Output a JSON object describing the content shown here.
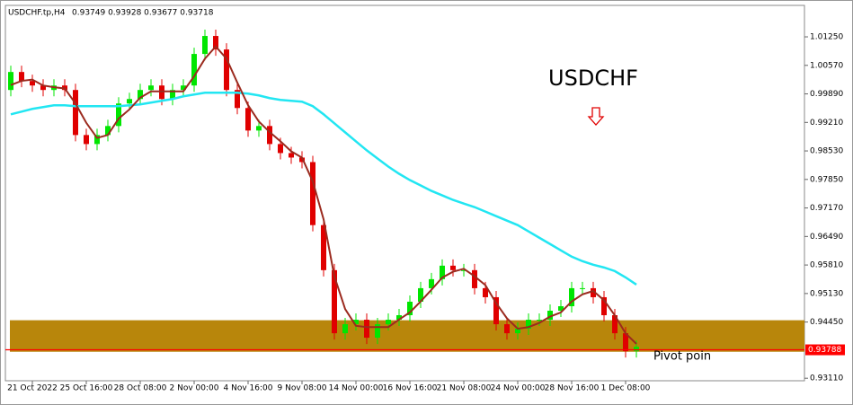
{
  "chart_data": {
    "type": "candlestick",
    "header": "USDCHF.tp,H4",
    "quote": "0.93749 0.93928 0.93677 0.93718",
    "annotation": "USDCHF",
    "pivot_label": "Pivot poin",
    "categories": [
      null,
      null,
      "21 Oct 2022",
      null,
      null,
      null,
      null,
      "25 Oct 16:00",
      null,
      null,
      null,
      null,
      "28 Oct 08:00",
      null,
      null,
      null,
      null,
      "2 Nov 00:00",
      null,
      null,
      null,
      null,
      "4 Nov 16:00",
      null,
      null,
      null,
      null,
      "9 Nov 08:00",
      null,
      null,
      null,
      null,
      "14 Nov 00:00",
      null,
      null,
      null,
      null,
      "16 Nov 16:00",
      null,
      null,
      null,
      null,
      "21 Nov 08:00",
      null,
      null,
      null,
      null,
      "24 Nov 00:00",
      null,
      null,
      null,
      null,
      "28 Nov 16:00",
      null,
      null,
      null,
      null,
      "1 Dec 08:00",
      null
    ],
    "open": [
      0.99983,
      1.00412,
      1.00198,
      1.0009,
      0.99983,
      1.0009,
      0.99983,
      0.98909,
      0.98694,
      0.98909,
      0.99124,
      0.99661,
      0.99768,
      0.99983,
      1.0009,
      0.99768,
      0.99983,
      1.0009,
      1.00842,
      1.01271,
      1.00949,
      0.99983,
      0.99553,
      0.99016,
      0.99124,
      0.98694,
      0.98479,
      0.98372,
      0.98264,
      0.96761,
      0.95687,
      0.94183,
      0.94398,
      0.94505,
      0.94076,
      0.94398,
      0.94505,
      0.94613,
      0.94935,
      0.95257,
      0.95472,
      0.95794,
      0.95687,
      0.95687,
      0.95257,
      0.95042,
      0.94398,
      0.94183,
      0.94291,
      0.94505,
      0.94505,
      0.9472,
      0.94827,
      0.95257,
      0.95257,
      0.95042,
      0.94613,
      0.94183,
      0.93754
    ],
    "high": [
      1.00562,
      1.00562,
      1.00348,
      1.0024,
      1.0024,
      1.0024,
      1.00133,
      0.99059,
      0.99059,
      0.99274,
      0.99811,
      0.99918,
      1.00133,
      1.0024,
      1.0024,
      1.00133,
      1.0024,
      1.00992,
      1.01421,
      1.01421,
      1.01099,
      1.00133,
      0.99703,
      0.99274,
      0.99274,
      0.98844,
      0.98629,
      0.98522,
      0.98414,
      0.96911,
      0.95837,
      0.94548,
      0.94655,
      0.94655,
      0.94548,
      0.94655,
      0.94763,
      0.95085,
      0.95407,
      0.95622,
      0.95944,
      0.95944,
      0.95837,
      0.95837,
      0.95407,
      0.95192,
      0.94548,
      0.94441,
      0.94655,
      0.94655,
      0.9487,
      0.94977,
      0.95407,
      0.95407,
      0.95407,
      0.95192,
      0.94763,
      0.94333,
      0.94011
    ],
    "low": [
      0.99833,
      1.00048,
      0.9994,
      0.99833,
      0.99833,
      0.99833,
      0.98759,
      0.98544,
      0.98544,
      0.98759,
      0.98974,
      0.99511,
      0.99618,
      0.99833,
      0.99618,
      0.99618,
      0.99833,
      0.9994,
      1.00692,
      1.00799,
      0.99833,
      0.99403,
      0.98866,
      0.98866,
      0.98544,
      0.98329,
      0.98222,
      0.98114,
      0.96611,
      0.95537,
      0.94033,
      0.94033,
      0.94248,
      0.93926,
      0.93926,
      0.94248,
      0.94355,
      0.94463,
      0.94785,
      0.95107,
      0.95322,
      0.95537,
      0.95537,
      0.95107,
      0.94892,
      0.94248,
      0.94033,
      0.94033,
      0.94141,
      0.94355,
      0.94355,
      0.9457,
      0.94677,
      0.95107,
      0.94892,
      0.94463,
      0.94033,
      0.93604,
      0.93604
    ],
    "close": [
      1.00412,
      1.00198,
      1.0009,
      0.99983,
      1.0009,
      0.99983,
      0.98909,
      0.98694,
      0.98909,
      0.99124,
      0.99661,
      0.99768,
      0.99983,
      1.0009,
      0.99768,
      0.99983,
      1.0009,
      1.00842,
      1.01271,
      1.00949,
      0.99983,
      0.99553,
      0.99016,
      0.99124,
      0.98694,
      0.98479,
      0.98372,
      0.98264,
      0.96761,
      0.95687,
      0.94183,
      0.94398,
      0.94505,
      0.94076,
      0.94398,
      0.94505,
      0.94613,
      0.94935,
      0.95257,
      0.95472,
      0.95794,
      0.95687,
      0.95687,
      0.95257,
      0.95042,
      0.94398,
      0.94183,
      0.94291,
      0.94505,
      0.94505,
      0.9472,
      0.94827,
      0.95257,
      0.95257,
      0.95042,
      0.94613,
      0.94183,
      0.93754,
      0.93861
    ],
    "up_color": "#00e600",
    "down_color": "#e00000",
    "lines": [
      {
        "color": "#22e6f2",
        "values": [
          0.99403,
          0.99467,
          0.99532,
          0.99575,
          0.99618,
          0.99618,
          0.99596,
          0.99596,
          0.99596,
          0.99596,
          0.99596,
          0.99618,
          0.99639,
          0.99682,
          0.99725,
          0.99768,
          0.99832,
          0.99875,
          0.99918,
          0.99918,
          0.99918,
          0.99918,
          0.99897,
          0.99854,
          0.99789,
          0.99746,
          0.99725,
          0.99703,
          0.99596,
          0.99403,
          0.99188,
          0.98973,
          0.98758,
          0.98544,
          0.9835,
          0.98157,
          0.97985,
          0.97835,
          0.97706,
          0.97577,
          0.9747,
          0.97362,
          0.97276,
          0.9719,
          0.97083,
          0.96975,
          0.96868,
          0.96761,
          0.9661,
          0.9646,
          0.9631,
          0.96159,
          0.96009,
          0.95901,
          0.95816,
          0.95751,
          0.95665,
          0.95515,
          0.95343
        ]
      },
      {
        "color": "#9b2a1e",
        "values": [
          1.001,
          1.002,
          1.0023,
          1.0009,
          1.0005,
          1.0002,
          0.9966,
          0.992,
          0.9884,
          0.9891,
          0.993,
          0.9952,
          0.998,
          0.9995,
          0.9995,
          0.9995,
          0.9995,
          1.0031,
          1.0073,
          1.0102,
          1.0073,
          1.0016,
          0.9962,
          0.9923,
          0.9898,
          0.9876,
          0.9852,
          0.9837,
          0.978,
          0.969,
          0.9554,
          0.9476,
          0.9436,
          0.9433,
          0.9433,
          0.9433,
          0.9451,
          0.9468,
          0.9494,
          0.9522,
          0.9551,
          0.9565,
          0.9572,
          0.9554,
          0.9533,
          0.949,
          0.9454,
          0.9429,
          0.9433,
          0.9443,
          0.9458,
          0.9468,
          0.9494,
          0.9511,
          0.9519,
          0.9497,
          0.9461,
          0.9418,
          0.9393
        ]
      }
    ],
    "zone": {
      "from": 0.93741,
      "to": 0.94493,
      "color": "#b8860b"
    },
    "price_line": {
      "value": 0.93788,
      "label": "0.93788",
      "color": "#ff0000"
    },
    "ylim": [
      0.9305,
      1.02
    ],
    "yticks": [
      {
        "value": 1.0125,
        "label": "1.01250"
      },
      {
        "value": 1.0057,
        "label": "1.00570"
      },
      {
        "value": 0.9989,
        "label": "0.99890"
      },
      {
        "value": 0.9921,
        "label": "0.99210"
      },
      {
        "value": 0.9853,
        "label": "0.98530"
      },
      {
        "value": 0.9785,
        "label": "0.97850"
      },
      {
        "value": 0.9717,
        "label": "0.97170"
      },
      {
        "value": 0.9649,
        "label": "0.96490"
      },
      {
        "value": 0.9581,
        "label": "0.95810"
      },
      {
        "value": 0.9513,
        "label": "0.95130"
      },
      {
        "value": 0.9445,
        "label": "0.94450"
      },
      {
        "value": 0.9311,
        "label": "0.93110"
      }
    ]
  }
}
